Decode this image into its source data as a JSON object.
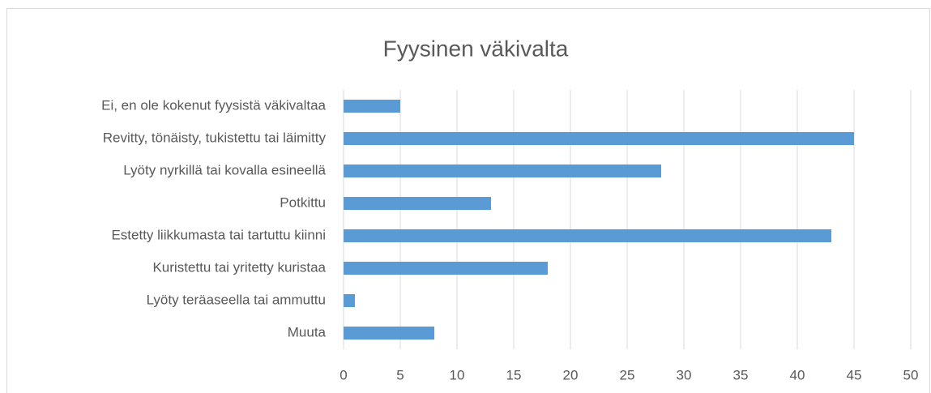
{
  "chart_data": {
    "type": "bar",
    "orientation": "horizontal",
    "title": "Fyysinen väkivalta",
    "categories": [
      "Ei, en ole kokenut fyysistä väkivaltaa",
      "Revitty, tönäisty, tukistettu tai läimitty",
      "Lyöty nyrkillä tai kovalla esineellä",
      "Potkittu",
      "Estetty liikkumasta tai tartuttu kiinni",
      "Kuristettu tai yritetty kuristaa",
      "Lyöty teräaseella tai ammuttu",
      "Muuta"
    ],
    "values": [
      5,
      45,
      28,
      13,
      43,
      18,
      1,
      8
    ],
    "color": "#5b9bd5",
    "xlim": [
      0,
      50
    ],
    "xticks": [
      0,
      5,
      10,
      15,
      20,
      25,
      30,
      35,
      40,
      45,
      50
    ],
    "grid": true
  }
}
